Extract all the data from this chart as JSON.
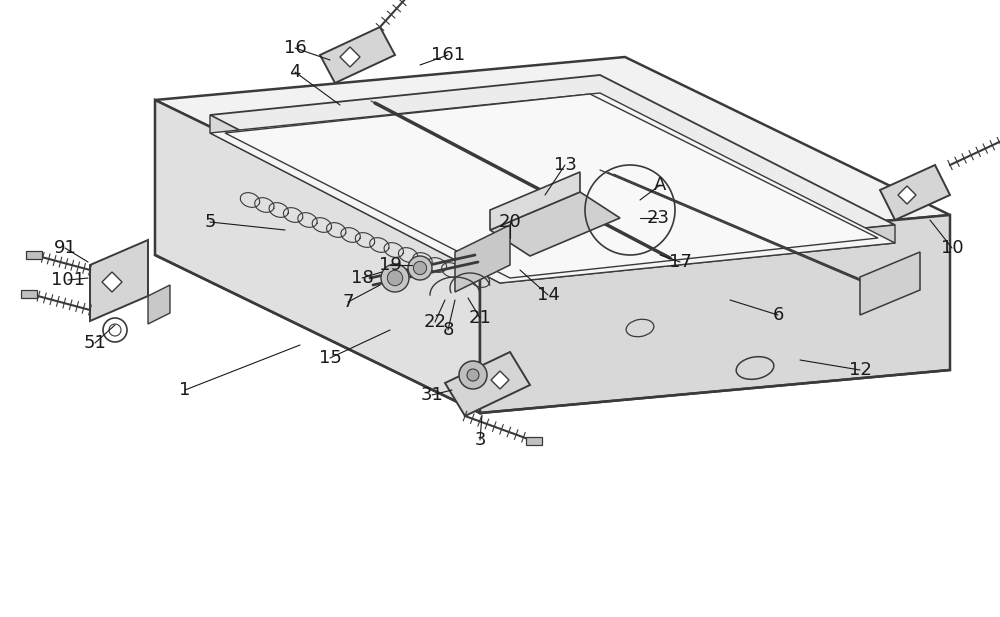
{
  "bg_color": "#ffffff",
  "line_color": "#3a3a3a",
  "lw": 1.3,
  "figsize": [
    10.0,
    6.17
  ],
  "dpi": 100,
  "label_fontsize": 13,
  "label_color": "#1a1a1a"
}
